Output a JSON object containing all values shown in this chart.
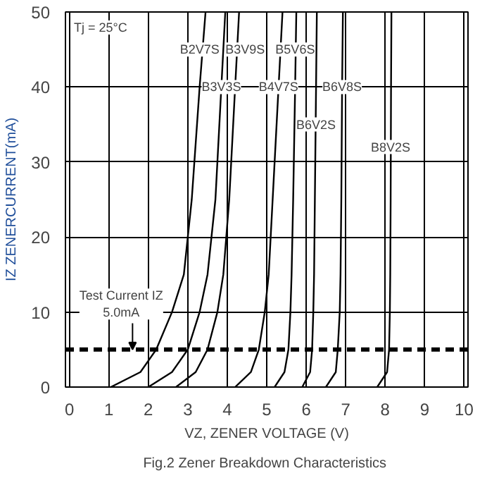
{
  "chart_data": {
    "type": "line",
    "title": "Fig.2  Zener Breakdown Characteristics",
    "xlabel": "VZ, ZENER VOLTAGE (V)",
    "ylabel": "IZ ZENERCURRENT(mA)",
    "xlim": [
      -0.1,
      10.1
    ],
    "ylim": [
      0,
      50
    ],
    "xticks": [
      0,
      1,
      2,
      3,
      4,
      5,
      6,
      7,
      8,
      9,
      10
    ],
    "yticks": [
      0,
      10,
      20,
      30,
      40,
      50
    ],
    "grid": true,
    "marker": "none",
    "line_style": "solid",
    "series": [
      {
        "color": "#000000",
        "x": [
          1.05,
          1.8,
          2.2,
          2.6,
          2.9,
          3.1,
          3.3,
          3.45
        ],
        "values": [
          0,
          2,
          5,
          10,
          15,
          25,
          40,
          50
        ]
      },
      {
        "color": "#000000",
        "x": [
          2.0,
          2.6,
          3.0,
          3.3,
          3.5,
          3.7,
          3.85,
          3.95
        ],
        "values": [
          0,
          2,
          5,
          10,
          15,
          25,
          40,
          50
        ]
      },
      {
        "color": "#000000",
        "x": [
          2.7,
          3.2,
          3.5,
          3.75,
          3.9,
          4.05,
          4.2,
          4.3
        ],
        "values": [
          0,
          2,
          5,
          10,
          15,
          25,
          40,
          50
        ]
      },
      {
        "color": "#000000",
        "x": [
          4.2,
          4.6,
          4.8,
          4.95,
          5.05,
          5.15,
          5.3,
          5.4
        ],
        "values": [
          0,
          2,
          5,
          10,
          15,
          25,
          40,
          50
        ]
      },
      {
        "color": "#000000",
        "x": [
          5.2,
          5.45,
          5.55,
          5.6,
          5.63,
          5.67,
          5.72,
          5.75
        ],
        "values": [
          0,
          2,
          5,
          10,
          15,
          25,
          40,
          50
        ]
      },
      {
        "color": "#000000",
        "x": [
          5.9,
          6.1,
          6.15,
          6.18,
          6.2,
          6.22,
          6.25,
          6.27
        ],
        "values": [
          0,
          2,
          5,
          10,
          15,
          25,
          40,
          50
        ]
      },
      {
        "color": "#000000",
        "x": [
          6.5,
          6.75,
          6.8,
          6.85,
          6.87,
          6.89,
          6.91,
          6.93
        ],
        "values": [
          0,
          2,
          5,
          10,
          15,
          25,
          40,
          50
        ]
      },
      {
        "color": "#000000",
        "x": [
          7.8,
          8.05,
          8.1,
          8.12,
          8.13,
          8.14,
          8.15,
          8.16
        ],
        "values": [
          0,
          2,
          5,
          10,
          15,
          25,
          40,
          50
        ]
      }
    ],
    "ref_lines": [
      {
        "axis": "y",
        "value": 5,
        "color": "#000000",
        "line_style": "dashed"
      }
    ],
    "annotations": [
      "Tj = 25°C",
      {
        "text": "Test Current IZ\n5.0mA",
        "x": 1.6,
        "y": 5
      },
      {
        "text": "B2V7S",
        "x": 3.3,
        "y": 45
      },
      {
        "text": "B3V3S",
        "x": 3.85,
        "y": 40
      },
      {
        "text": "B3V9S",
        "x": 4.45,
        "y": 45
      },
      {
        "text": "B4V7S",
        "x": 5.3,
        "y": 40
      },
      {
        "text": "B5V6S",
        "x": 5.72,
        "y": 45
      },
      {
        "text": "B6V8S",
        "x": 6.91,
        "y": 40
      },
      {
        "text": "B6V2S",
        "x": 6.25,
        "y": 35
      },
      {
        "text": "B8V2S",
        "x": 8.14,
        "y": 32
      }
    ]
  }
}
